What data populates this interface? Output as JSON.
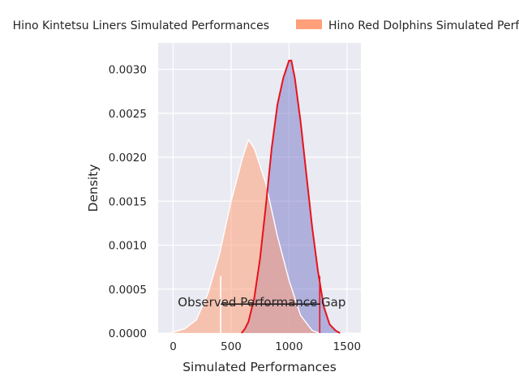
{
  "chart_data": {
    "type": "area",
    "title": "",
    "xlabel": "Simulated Performances",
    "ylabel": "Density",
    "xlim": [
      -130,
      1620
    ],
    "ylim": [
      0,
      0.0033
    ],
    "x_ticks": [
      0,
      500,
      1000,
      1500
    ],
    "y_ticks": [
      0.0,
      0.0005,
      0.001,
      0.0015,
      0.002,
      0.0025,
      0.003
    ],
    "y_tick_labels": [
      "0.0000",
      "0.0005",
      "0.0010",
      "0.0015",
      "0.0020",
      "0.0025",
      "0.0030"
    ],
    "grid": true,
    "legend_position": "top",
    "series": [
      {
        "name": "Hino Kintetsu Liners Simulated Performances",
        "color": "#8080cc",
        "outline": "#ffffff",
        "points": [
          [
            590,
            0.0
          ],
          [
            620,
            5e-05
          ],
          [
            650,
            0.00013
          ],
          [
            700,
            0.0004
          ],
          [
            750,
            0.00085
          ],
          [
            800,
            0.00145
          ],
          [
            850,
            0.0021
          ],
          [
            900,
            0.0026
          ],
          [
            950,
            0.0029
          ],
          [
            1000,
            0.0031
          ],
          [
            1020,
            0.0031
          ],
          [
            1050,
            0.0029
          ],
          [
            1100,
            0.0024
          ],
          [
            1150,
            0.0018
          ],
          [
            1200,
            0.0012
          ],
          [
            1250,
            0.0007
          ],
          [
            1300,
            0.0003
          ],
          [
            1350,
            0.0001
          ],
          [
            1400,
            3e-05
          ],
          [
            1440,
            0.0
          ]
        ]
      },
      {
        "name": "Hino Red Dolphins Simulated Performances",
        "color": "#ffa07a",
        "outline": "#ffffff",
        "points": [
          [
            -30,
            0.0
          ],
          [
            0,
            1e-05
          ],
          [
            100,
            5e-05
          ],
          [
            200,
            0.00015
          ],
          [
            300,
            0.00045
          ],
          [
            400,
            0.0009
          ],
          [
            500,
            0.0015
          ],
          [
            600,
            0.002
          ],
          [
            650,
            0.0022
          ],
          [
            700,
            0.0021
          ],
          [
            800,
            0.0017
          ],
          [
            900,
            0.0011
          ],
          [
            1000,
            0.0006
          ],
          [
            1100,
            0.0002
          ],
          [
            1200,
            3e-05
          ],
          [
            1260,
            0.0
          ]
        ]
      }
    ],
    "red_kde": {
      "color": "#e8121a",
      "points": [
        [
          590,
          0.0
        ],
        [
          620,
          5e-05
        ],
        [
          650,
          0.00013
        ],
        [
          700,
          0.0004
        ],
        [
          750,
          0.00085
        ],
        [
          800,
          0.00145
        ],
        [
          850,
          0.0021
        ],
        [
          900,
          0.0026
        ],
        [
          950,
          0.0029
        ],
        [
          1000,
          0.0031
        ],
        [
          1020,
          0.0031
        ],
        [
          1050,
          0.0029
        ],
        [
          1100,
          0.0024
        ],
        [
          1150,
          0.0018
        ],
        [
          1200,
          0.0012
        ],
        [
          1250,
          0.0007
        ],
        [
          1300,
          0.0003
        ],
        [
          1350,
          0.0001
        ],
        [
          1400,
          3e-05
        ],
        [
          1440,
          0.0
        ]
      ]
    },
    "observed_lines": [
      {
        "x": 410,
        "y_top": 0.00065,
        "color": "#ffffff"
      },
      {
        "x": 1265,
        "y_top": 0.00065,
        "color": "#e8121a"
      }
    ],
    "annotation": {
      "text": "Observed Performance Gap",
      "x_text": 40,
      "y_text": 0.00035,
      "arrow_start": 410,
      "arrow_end": 1265,
      "arrow_y": 0.00033
    }
  }
}
